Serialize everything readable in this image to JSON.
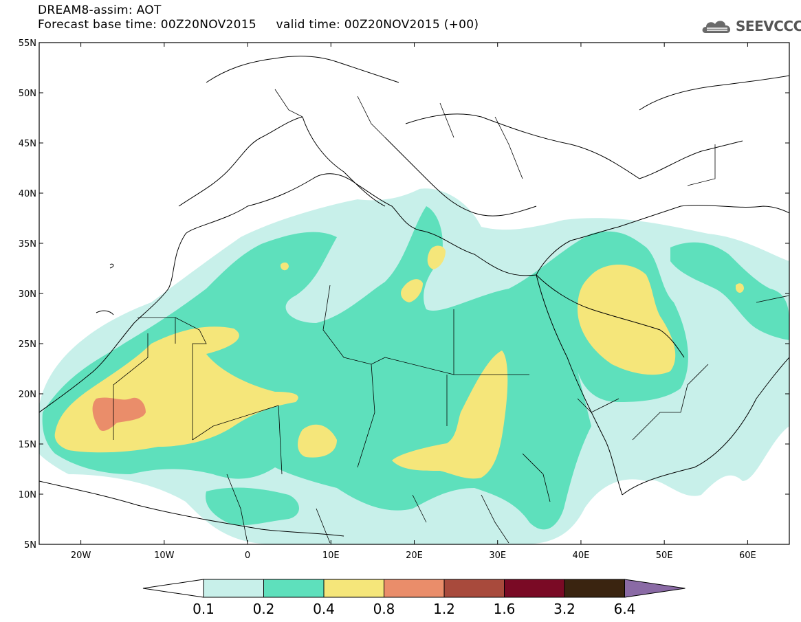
{
  "header": {
    "title_line1": "DREAM8-assim: AOT",
    "title_line2": "Forecast base time: 00Z20NOV2015     valid time: 00Z20NOV2015 (+00)"
  },
  "logo": {
    "text": "SEEVCCC",
    "icon": "cloud-icon"
  },
  "map": {
    "lon_range": [
      -25,
      65
    ],
    "lat_range": [
      5,
      55
    ],
    "lat_ticks": [
      "55N",
      "50N",
      "45N",
      "40N",
      "35N",
      "30N",
      "25N",
      "20N",
      "15N",
      "10N",
      "5N"
    ],
    "lon_ticks": [
      "20W",
      "10W",
      "0",
      "10E",
      "20E",
      "30E",
      "40E",
      "50E",
      "60E"
    ]
  },
  "legend": {
    "colors": [
      "#c8f0ea",
      "#5ee0bc",
      "#f5e67a",
      "#ea8d6a",
      "#a84a3c",
      "#7a0a25",
      "#3a2410",
      "#8a6aa5"
    ],
    "under_color": "#ffffff",
    "labels": [
      "0.1",
      "0.2",
      "0.4",
      "0.8",
      "1.2",
      "1.6",
      "3.2",
      "6.4"
    ]
  }
}
